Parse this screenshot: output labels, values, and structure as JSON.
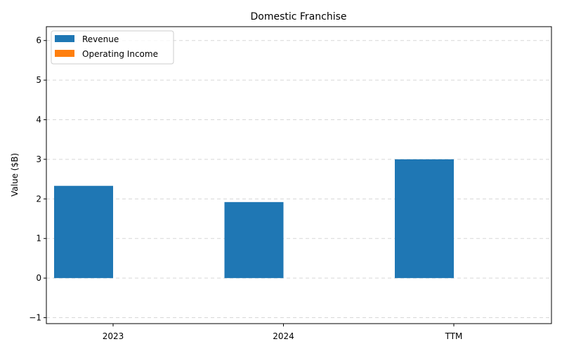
{
  "chart_data": {
    "type": "bar",
    "title": "Domestic Franchise",
    "xlabel": "",
    "ylabel": "Value ($B)",
    "categories": [
      "2023",
      "2024",
      "TTM"
    ],
    "series": [
      {
        "name": "Revenue",
        "values": [
          2.33,
          1.92,
          3.0
        ],
        "color": "#1f77b4"
      },
      {
        "name": "Operating Income",
        "values": [
          0,
          0,
          0
        ],
        "color": "#ff7f0e"
      }
    ],
    "ylim": [
      -1.15,
      6.35
    ],
    "yticks": [
      -1,
      0,
      1,
      2,
      3,
      4,
      5,
      6
    ],
    "grid": true,
    "legend_position": "top-left"
  }
}
